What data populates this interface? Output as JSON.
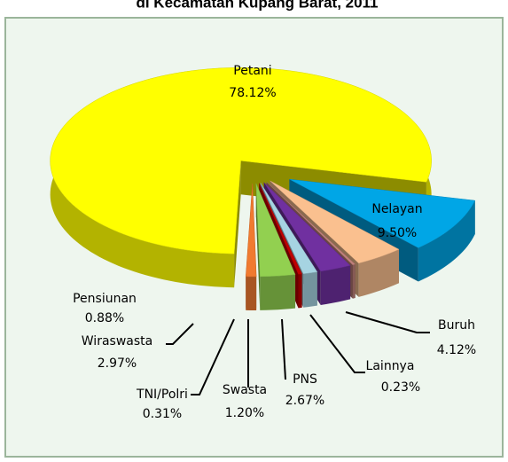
{
  "chart_data": {
    "type": "pie3d",
    "title": "di Kecamatan Kupang Barat, 2011",
    "categories": [
      "Petani",
      "Nelayan",
      "Buruh",
      "Lainnya",
      "PNS",
      "Swasta",
      "TNI/Polri",
      "Wiraswasta",
      "Pensiunan"
    ],
    "values": [
      78.12,
      9.5,
      4.12,
      0.23,
      2.67,
      1.2,
      0.31,
      2.97,
      0.88
    ],
    "value_labels": [
      "78.12%",
      "9.50%",
      "4.12%",
      "0.23%",
      "2.67%",
      "1.20%",
      "0.31%",
      "2.97%",
      "0.88%"
    ],
    "colors": [
      "#ffff00",
      "#00a6e6",
      "#fac08f",
      "#c0807a",
      "#7030a0",
      "#a6d4e2",
      "#c00000",
      "#92d050",
      "#f07a30"
    ]
  }
}
